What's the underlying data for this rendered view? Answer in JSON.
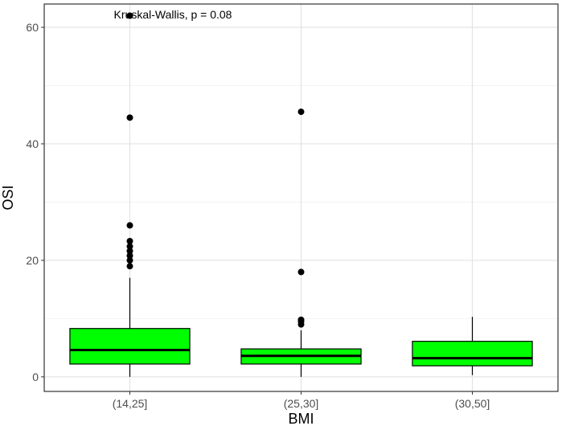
{
  "chart_data": {
    "type": "boxplot",
    "title": "",
    "xlabel": "BMI",
    "ylabel": "OSI",
    "categories": [
      "(14,25]",
      "(25,30]",
      "(30,50]"
    ],
    "ylim": [
      -2.5,
      64
    ],
    "y_ticks": [
      0,
      20,
      40,
      60
    ],
    "y_tick_labels": [
      "0",
      "20",
      "40",
      "60"
    ],
    "grid": true,
    "legend": "none",
    "annotation": "Kruskal-Wallis, p = 0.08",
    "box_fill": "#00ff00",
    "box_stroke": "#000000",
    "boxes": [
      {
        "category": "(14,25]",
        "whisker_low": 0,
        "q1": 2.2,
        "median": 4.6,
        "q3": 8.3,
        "whisker_high": 17,
        "outliers": [
          19,
          20,
          20.8,
          21.6,
          22.4,
          23.3,
          26,
          44.5,
          62
        ]
      },
      {
        "category": "(25,30]",
        "whisker_low": 0,
        "q1": 2.2,
        "median": 3.6,
        "q3": 4.8,
        "whisker_high": 8,
        "outliers": [
          9,
          9.5,
          9.8,
          18,
          45.5
        ]
      },
      {
        "category": "(30,50]",
        "whisker_low": 0.3,
        "q1": 1.9,
        "median": 3.2,
        "q3": 6.1,
        "whisker_high": 10.3,
        "outliers": []
      }
    ]
  }
}
